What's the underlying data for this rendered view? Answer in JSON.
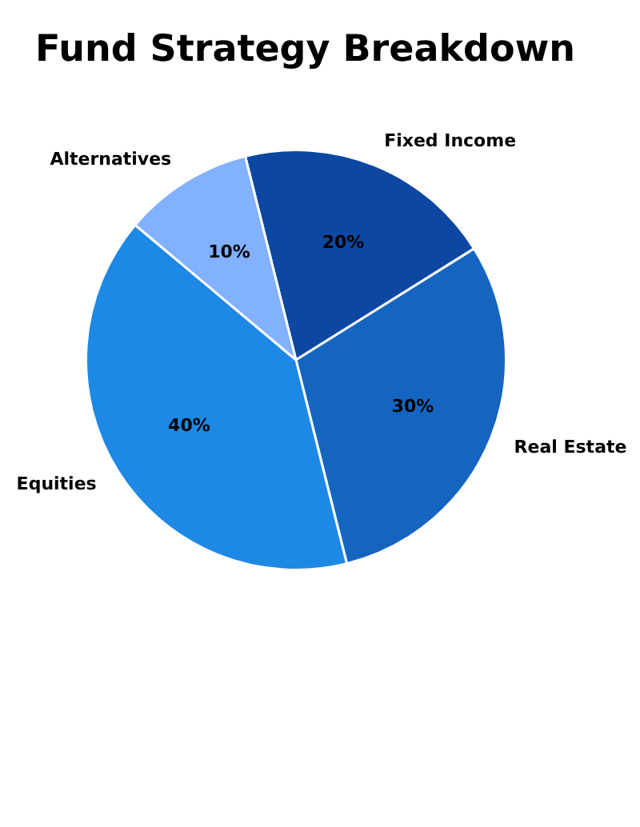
{
  "chart_data": {
    "type": "pie",
    "title": "Fund Strategy Breakdown",
    "categories": [
      "Fixed Income",
      "Real Estate",
      "Equities",
      "Alternatives"
    ],
    "values": [
      20,
      30,
      40,
      10
    ],
    "colors": [
      "#0d47a1",
      "#1565c0",
      "#1e88e5",
      "#82b1ff"
    ],
    "value_labels": [
      "20%",
      "30%",
      "40%",
      "10%"
    ],
    "legend": false
  }
}
